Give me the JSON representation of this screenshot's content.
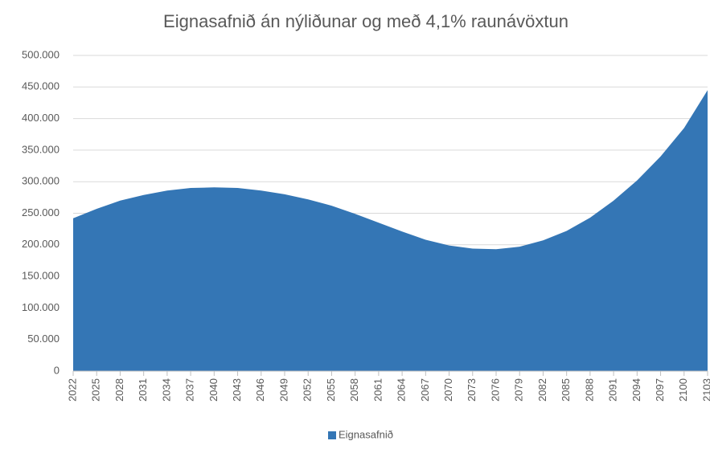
{
  "chart_data": {
    "type": "area",
    "title": "Eignasafnið án nýliðunar og með 4,1% raunávöxtun",
    "categories": [
      "2022",
      "2025",
      "2028",
      "2031",
      "2034",
      "2037",
      "2040",
      "2043",
      "2046",
      "2049",
      "2052",
      "2055",
      "2058",
      "2061",
      "2064",
      "2067",
      "2070",
      "2073",
      "2076",
      "2079",
      "2082",
      "2085",
      "2088",
      "2091",
      "2094",
      "2097",
      "2100",
      "2103"
    ],
    "series": [
      {
        "name": "Eignasafnið",
        "color": "#3476b5",
        "values": [
          242000,
          257000,
          270000,
          279000,
          286000,
          290000,
          291000,
          290000,
          286000,
          280000,
          272000,
          262000,
          249000,
          235000,
          221000,
          208000,
          199000,
          194000,
          193000,
          197000,
          207000,
          222000,
          243000,
          270000,
          302000,
          340000,
          385000,
          445000
        ]
      }
    ],
    "ylim": [
      0,
      500000
    ],
    "yticks": [
      0,
      {
        "value": 50000,
        "label": "50.000"
      },
      {
        "value": 100000,
        "label": "100.000"
      },
      {
        "value": 150000,
        "label": "150.000"
      },
      {
        "value": 200000,
        "label": "200.000"
      },
      {
        "value": 250000,
        "label": "250.000"
      },
      {
        "value": 300000,
        "label": "300.000"
      },
      {
        "value": 350000,
        "label": "350.000"
      },
      {
        "value": 400000,
        "label": "400.000"
      },
      {
        "value": 450000,
        "label": "450.000"
      },
      {
        "value": 500000,
        "label": "500.000"
      }
    ],
    "grid": true,
    "legend": "bottom"
  }
}
